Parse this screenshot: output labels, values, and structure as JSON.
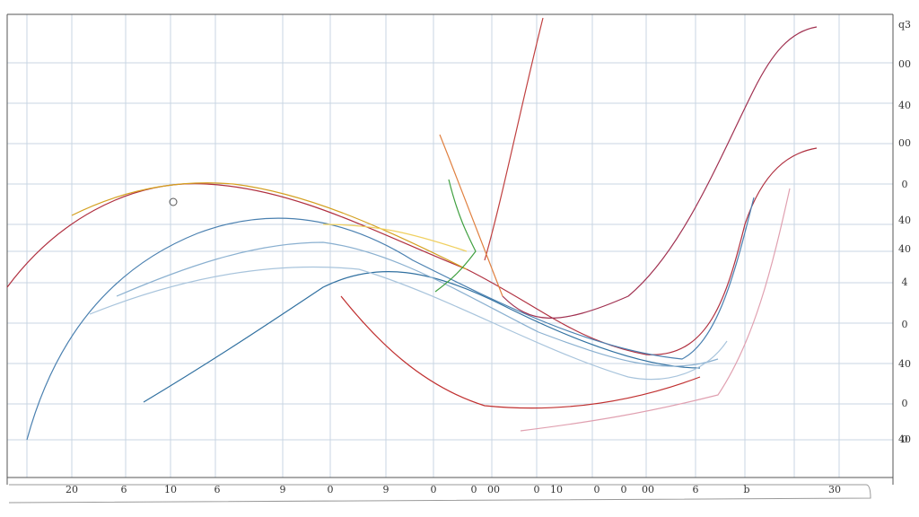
{
  "axis_labels": {
    "bottom": [
      "20",
      "6",
      "10",
      "6",
      "9",
      "0",
      "9",
      "0",
      "0",
      "00",
      "0",
      "10",
      "0",
      "0",
      "00",
      "6",
      "b",
      "30"
    ],
    "right": [
      "q3",
      "00",
      "40",
      "00",
      "0",
      "40",
      "40",
      "4",
      "0",
      "40",
      "0",
      "0",
      "40"
    ]
  }
}
